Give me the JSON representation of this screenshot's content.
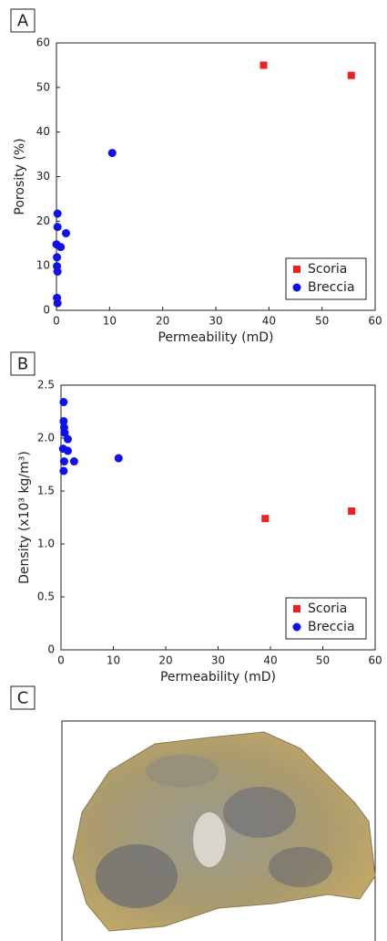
{
  "panel_labels": [
    "A",
    "B",
    "C"
  ],
  "chart_data": [
    {
      "type": "scatter",
      "xlabel": "Permeability (mD)",
      "ylabel": "Porosity (%)",
      "xlim": [
        0,
        60
      ],
      "ylim": [
        0,
        60
      ],
      "xticks": [
        0,
        10,
        20,
        30,
        40,
        50,
        60
      ],
      "yticks": [
        0,
        10,
        20,
        30,
        40,
        50,
        60
      ],
      "legend": "lower right",
      "series": [
        {
          "name": "Scoria",
          "color": "#ee2222",
          "marker": "square",
          "x": [
            39,
            55.5
          ],
          "values": [
            55,
            52.7
          ]
        },
        {
          "name": "Breccia",
          "color": "#1010ee",
          "marker": "circle",
          "x": [
            10.5,
            0.2,
            0.2,
            1.8,
            0,
            0.8,
            0.1,
            0.1,
            0.2,
            0.1,
            0.2
          ],
          "values": [
            35.3,
            21.7,
            18.7,
            17.3,
            14.8,
            14.2,
            11.9,
            9.9,
            8.7,
            2.8,
            1.6
          ]
        }
      ]
    },
    {
      "type": "scatter",
      "xlabel": "Permeability (mD)",
      "ylabel": "Density (x10³ kg/m³)",
      "xlim": [
        0,
        60
      ],
      "ylim": [
        0,
        2.5
      ],
      "xticks": [
        0,
        10,
        20,
        30,
        40,
        50,
        60
      ],
      "yticks": [
        0,
        0.5,
        {
          "value": 1,
          "label": "1.0"
        },
        1.5,
        {
          "value": 2,
          "label": "2.0"
        },
        2.5
      ],
      "legend": "lower right",
      "series": [
        {
          "name": "Scoria",
          "color": "#ee2222",
          "marker": "square",
          "x": [
            39,
            55.5
          ],
          "values": [
            1.24,
            1.31
          ]
        },
        {
          "name": "Breccia",
          "color": "#1010ee",
          "marker": "circle",
          "x": [
            11,
            0.5,
            0.5,
            0.6,
            0.7,
            1.3,
            0.4,
            1.3,
            0.6,
            2.5,
            0.5
          ],
          "values": [
            1.81,
            2.34,
            2.16,
            2.1,
            2.05,
            1.99,
            1.9,
            1.88,
            1.78,
            1.78,
            1.69
          ]
        }
      ]
    }
  ]
}
